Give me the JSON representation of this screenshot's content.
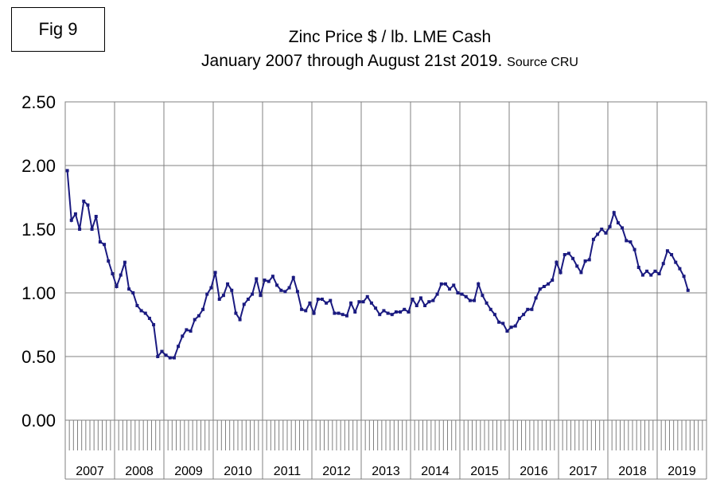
{
  "figure_label": "Fig 9",
  "title_line1": "Zinc Price $ / lb. LME Cash",
  "title_line2": "January 2007 through August 21st 2019.",
  "source_note": "Source CRU",
  "colors": {
    "line": "#1a1a80",
    "grid": "#808080",
    "axis": "#808080"
  },
  "chart_data": {
    "type": "line",
    "title": "Zinc Price $ / lb. LME Cash",
    "subtitle": "January 2007 through August 21st 2019. Source CRU",
    "xlabel": "",
    "ylabel": "",
    "ylim": [
      0,
      2.5
    ],
    "y_ticks": [
      "0.00",
      "0.50",
      "1.00",
      "1.50",
      "2.00",
      "2.50"
    ],
    "grid": true,
    "x_start": "2007-01",
    "year_labels": [
      "2007",
      "2008",
      "2009",
      "2010",
      "2011",
      "2012",
      "2013",
      "2014",
      "2015",
      "2016",
      "2017",
      "2018",
      "2019"
    ],
    "series": [
      {
        "values": [
          1.96,
          1.57,
          1.62,
          1.5,
          1.72,
          1.69,
          1.5,
          1.6,
          1.4,
          1.38,
          1.25,
          1.15,
          1.05,
          1.14,
          1.24,
          1.03,
          1.0,
          0.9,
          0.86,
          0.84,
          0.8,
          0.75,
          0.5,
          0.54,
          0.51,
          0.49,
          0.49,
          0.58,
          0.66,
          0.71,
          0.7,
          0.79,
          0.82,
          0.87,
          0.99,
          1.04,
          1.16,
          0.95,
          0.98,
          1.07,
          1.02,
          0.84,
          0.79,
          0.91,
          0.95,
          0.99,
          1.11,
          0.98,
          1.1,
          1.09,
          1.13,
          1.06,
          1.02,
          1.01,
          1.04,
          1.12,
          1.01,
          0.87,
          0.86,
          0.92,
          0.84,
          0.95,
          0.95,
          0.92,
          0.94,
          0.84,
          0.84,
          0.83,
          0.82,
          0.92,
          0.85,
          0.93,
          0.93,
          0.97,
          0.92,
          0.88,
          0.83,
          0.86,
          0.84,
          0.83,
          0.85,
          0.85,
          0.87,
          0.85,
          0.95,
          0.9,
          0.96,
          0.9,
          0.93,
          0.94,
          0.99,
          1.07,
          1.07,
          1.03,
          1.06,
          1.0,
          0.99,
          0.97,
          0.94,
          0.94,
          1.07,
          0.98,
          0.92,
          0.87,
          0.83,
          0.77,
          0.76,
          0.7,
          0.73,
          0.74,
          0.8,
          0.83,
          0.87,
          0.87,
          0.96,
          1.03,
          1.05,
          1.07,
          1.1,
          1.24,
          1.16,
          1.3,
          1.31,
          1.27,
          1.21,
          1.16,
          1.25,
          1.26,
          1.42,
          1.46,
          1.5,
          1.47,
          1.52,
          1.63,
          1.55,
          1.51,
          1.41,
          1.4,
          1.34,
          1.2,
          1.14,
          1.17,
          1.14,
          1.17,
          1.15,
          1.23,
          1.33,
          1.3,
          1.24,
          1.19,
          1.13,
          1.02
        ]
      }
    ]
  }
}
